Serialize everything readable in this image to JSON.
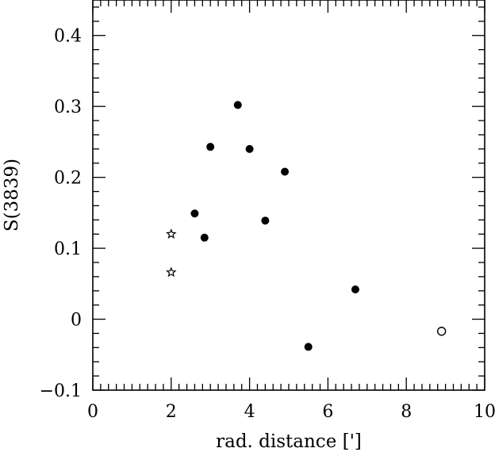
{
  "chart_data": {
    "type": "scatter",
    "title": "",
    "xlabel": "rad. distance [']",
    "ylabel": "S(3839)",
    "xlim": [
      0,
      10
    ],
    "ylim": [
      -0.1,
      0.45
    ],
    "x_ticks": [
      0,
      2,
      4,
      6,
      8,
      10
    ],
    "x_tick_labels": [
      "0",
      "2",
      "4",
      "6",
      "8",
      "10"
    ],
    "y_ticks": [
      -0.1,
      0,
      0.1,
      0.2,
      0.3,
      0.4
    ],
    "y_tick_labels": [
      "−0.1",
      "0",
      "0.1",
      "0.2",
      "0.3",
      "0.4"
    ],
    "grid": false,
    "series": [
      {
        "marker": "filled-circle",
        "points": [
          {
            "x": 2.6,
            "y": 0.149
          },
          {
            "x": 2.85,
            "y": 0.115
          },
          {
            "x": 3.0,
            "y": 0.243
          },
          {
            "x": 3.7,
            "y": 0.302
          },
          {
            "x": 4.0,
            "y": 0.24
          },
          {
            "x": 4.4,
            "y": 0.139
          },
          {
            "x": 4.9,
            "y": 0.208
          },
          {
            "x": 5.5,
            "y": -0.039
          },
          {
            "x": 6.7,
            "y": 0.042
          }
        ]
      },
      {
        "marker": "open-circle",
        "points": [
          {
            "x": 8.9,
            "y": -0.017
          }
        ]
      },
      {
        "marker": "open-star",
        "points": [
          {
            "x": 2.0,
            "y": 0.12
          },
          {
            "x": 2.0,
            "y": 0.066
          }
        ]
      }
    ],
    "colors": {
      "marker": "#000000",
      "axes": "#000000",
      "background": "#ffffff"
    }
  }
}
